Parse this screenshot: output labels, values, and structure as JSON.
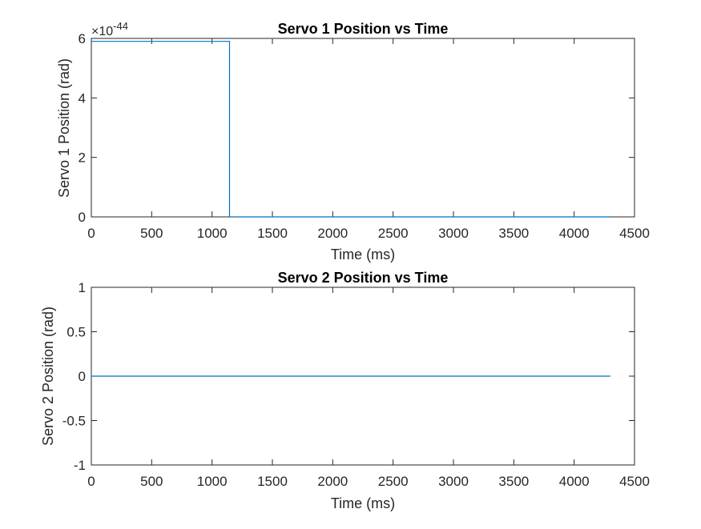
{
  "chart_data": [
    {
      "type": "line",
      "title": "Servo 1 Position vs Time",
      "xlabel": "Time (ms)",
      "ylabel": "Servo 1 Position (rad)",
      "xlim": [
        0,
        4500
      ],
      "ylim": [
        0,
        6
      ],
      "xticks": [
        "0",
        "500",
        "1000",
        "1500",
        "2000",
        "2500",
        "3000",
        "3500",
        "4000",
        "4500"
      ],
      "yticks": [
        "0",
        "2",
        "4",
        "6"
      ],
      "y_exponent": {
        "base": "×10",
        "power": "-44"
      },
      "series": [
        {
          "color": "#0072bd",
          "step": true,
          "x": [
            0,
            1145,
            1145,
            4300
          ],
          "y": [
            5.9,
            5.9,
            0,
            0
          ]
        }
      ]
    },
    {
      "type": "line",
      "title": "Servo 2 Position vs Time",
      "xlabel": "Time (ms)",
      "ylabel": "Servo 2 Position (rad)",
      "xlim": [
        0,
        4500
      ],
      "ylim": [
        -1,
        1
      ],
      "xticks": [
        "0",
        "500",
        "1000",
        "1500",
        "2000",
        "2500",
        "3000",
        "3500",
        "4000",
        "4500"
      ],
      "yticks": [
        "-1",
        "-0.5",
        "0",
        "0.5",
        "1"
      ],
      "series": [
        {
          "color": "#0072bd",
          "x": [
            0,
            4300
          ],
          "y": [
            0,
            0
          ]
        }
      ]
    }
  ]
}
